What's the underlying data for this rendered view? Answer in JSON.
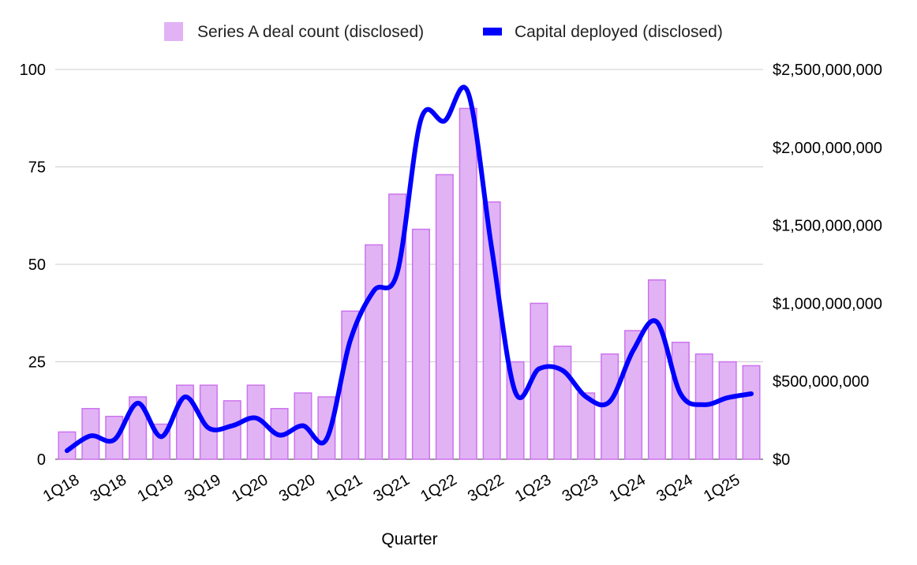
{
  "chart_data": {
    "type": "bar",
    "title": "",
    "xlabel": "Quarter",
    "ylabel": "",
    "y2label": "",
    "ylim": [
      0,
      100
    ],
    "y2lim": [
      0,
      2500000000
    ],
    "y_ticks": [
      "0",
      "25",
      "50",
      "75",
      "100"
    ],
    "y2_ticks": [
      "$0",
      "$500,000,000",
      "$1,000,000,000",
      "$1,500,000,000",
      "$2,000,000,000",
      "$2,500,000,000"
    ],
    "x_tick_labels": [
      "1Q18",
      "3Q18",
      "1Q19",
      "3Q19",
      "1Q20",
      "3Q20",
      "1Q21",
      "3Q21",
      "1Q22",
      "3Q22",
      "1Q23",
      "3Q23",
      "1Q24",
      "3Q24",
      "1Q25"
    ],
    "categories": [
      "1Q18",
      "2Q18",
      "3Q18",
      "4Q18",
      "1Q19",
      "2Q19",
      "3Q19",
      "4Q19",
      "1Q20",
      "2Q20",
      "3Q20",
      "4Q20",
      "1Q21",
      "2Q21",
      "3Q21",
      "4Q21",
      "1Q22",
      "2Q22",
      "3Q22",
      "4Q22",
      "1Q23",
      "2Q23",
      "3Q23",
      "4Q23",
      "1Q24",
      "2Q24",
      "3Q24",
      "4Q24",
      "1Q25",
      "2Q25"
    ],
    "legend_position": "top",
    "grid": true,
    "series": [
      {
        "name": "Series A deal count (disclosed)",
        "type": "bar",
        "axis": "left",
        "color": "#e1b3f5",
        "border_color": "#cc73ee",
        "values": [
          7,
          13,
          11,
          16,
          9,
          19,
          19,
          15,
          19,
          13,
          17,
          16,
          38,
          55,
          68,
          59,
          73,
          90,
          66,
          25,
          40,
          29,
          17,
          27,
          33,
          46,
          30,
          27,
          25,
          24
        ]
      },
      {
        "name": "Capital deployed (disclosed)",
        "type": "line",
        "axis": "right",
        "color": "#0000ff",
        "values": [
          55000000,
          150000000,
          125000000,
          360000000,
          145000000,
          400000000,
          200000000,
          215000000,
          265000000,
          155000000,
          215000000,
          130000000,
          760000000,
          1080000000,
          1200000000,
          2180000000,
          2170000000,
          2350000000,
          1350000000,
          430000000,
          580000000,
          570000000,
          400000000,
          370000000,
          700000000,
          880000000,
          420000000,
          350000000,
          395000000,
          420000000
        ]
      }
    ]
  }
}
